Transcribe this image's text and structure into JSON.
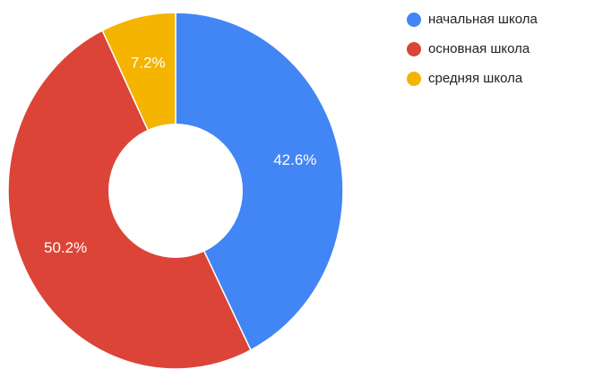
{
  "chart_data": {
    "type": "pie",
    "categories": [
      "начальная школа",
      "основная школа",
      "средняя школа"
    ],
    "values": [
      42.6,
      50.2,
      7.2
    ],
    "value_labels": [
      "42.6%",
      "50.2%",
      "7.2%"
    ],
    "colors": [
      "#4285f4",
      "#db4437",
      "#f4b400"
    ],
    "legend": "top-right"
  }
}
